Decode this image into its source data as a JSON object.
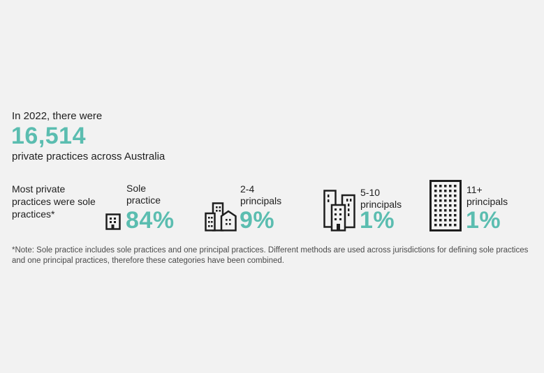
{
  "colors": {
    "accent": "#5bbdb0",
    "text": "#1e1e1e",
    "background": "#f2f2f2",
    "note": "#4a4a4a"
  },
  "intro": "In 2022, there were",
  "total_count": "16,514",
  "total_suffix": "private practices across Australia",
  "side_label": "Most private practices were sole practices*",
  "stats": [
    {
      "label_line1": "Sole",
      "label_line2": "practice",
      "value": "84%",
      "icon": "small-building-icon"
    },
    {
      "label_line1": "2-4",
      "label_line2": "principals",
      "value": "9%",
      "icon": "building-cluster-icon"
    },
    {
      "label_line1": "5-10",
      "label_line2": "principals",
      "value": "1%",
      "icon": "tall-buildings-icon"
    },
    {
      "label_line1": "11+",
      "label_line2": "principals",
      "value": "1%",
      "icon": "large-building-icon"
    }
  ],
  "note": "*Note: Sole practice includes sole practices and one principal practices. Different methods are used across jurisdictions for defining sole practices and one principal practices, therefore these categories have been combined."
}
